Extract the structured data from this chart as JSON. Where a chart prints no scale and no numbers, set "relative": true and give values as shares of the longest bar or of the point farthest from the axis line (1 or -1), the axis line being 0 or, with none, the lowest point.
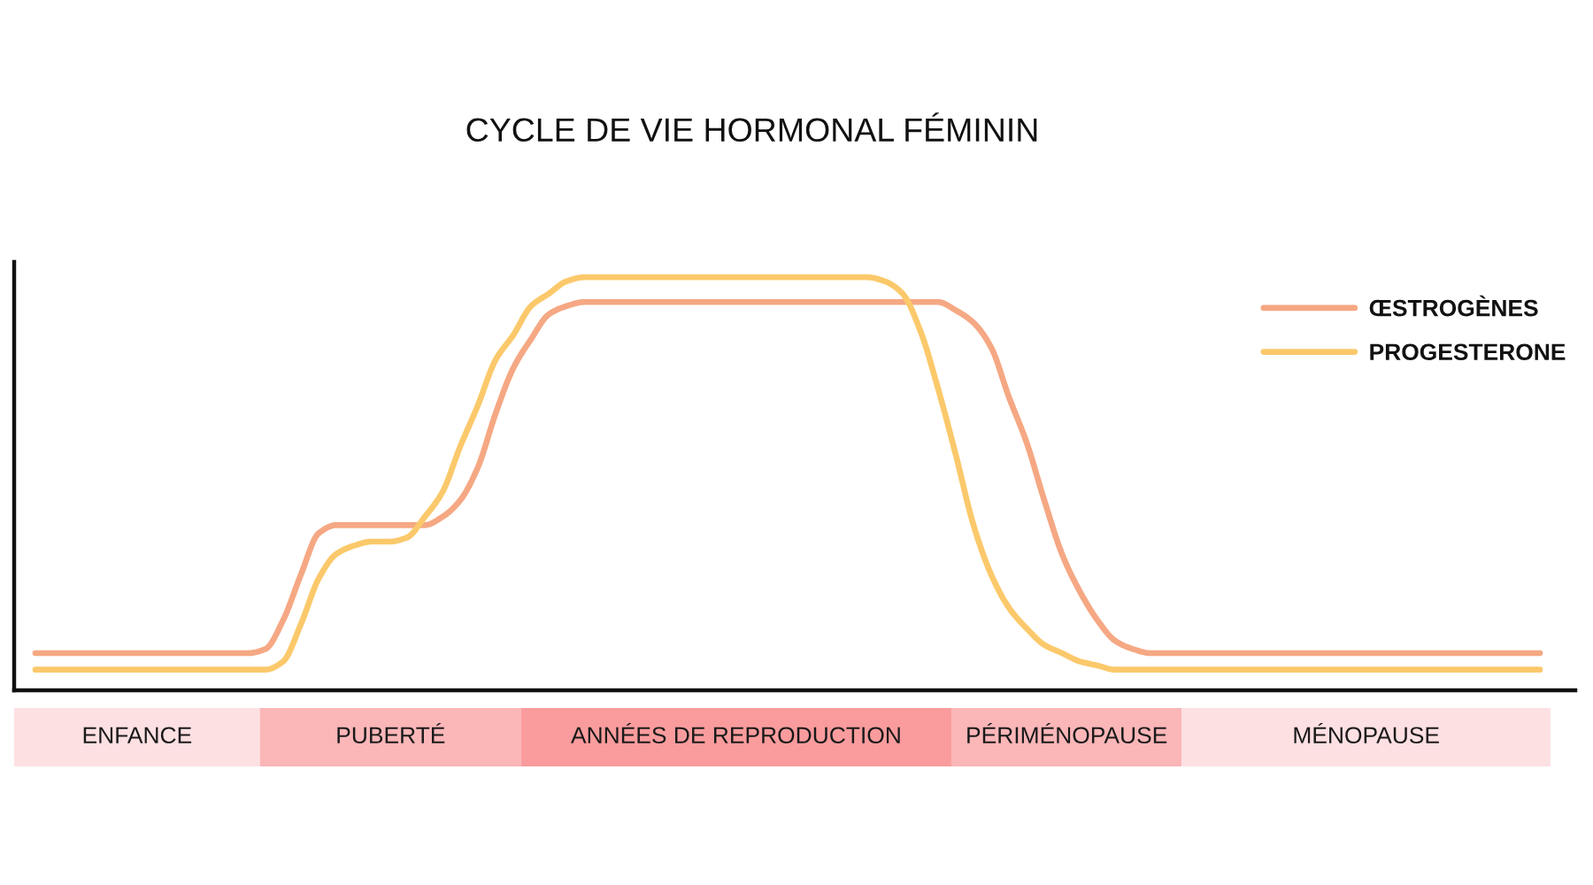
{
  "chart_data": [
    {
      "type": "line",
      "title": "CYCLE DE VIE HORMONAL FÉMININ",
      "relative": true,
      "legend": "top right",
      "categories": [
        null,
        null,
        null,
        null,
        null,
        null,
        null,
        null,
        null,
        null,
        null,
        null,
        null,
        null,
        null,
        null,
        null,
        null,
        null,
        null,
        null,
        null,
        null,
        null,
        null,
        null,
        null,
        null,
        null,
        null,
        null,
        null,
        null,
        null,
        null,
        null,
        null,
        null,
        null,
        null,
        null,
        null,
        null,
        null,
        null,
        null,
        null,
        null,
        null,
        null,
        null,
        null,
        null,
        null,
        null,
        null,
        null,
        null,
        null,
        null,
        null,
        null,
        null,
        null,
        null,
        null,
        null,
        null,
        null,
        null,
        null,
        null,
        null,
        null,
        null,
        null,
        null,
        null,
        null,
        null,
        null,
        null,
        null,
        null,
        null,
        null
      ],
      "series": [
        {
          "name": "ŒSTROGÈNES",
          "color": "#f5a883",
          "values": [
            0.09,
            0.09,
            0.09,
            0.09,
            0.09,
            0.09,
            0.09,
            0.09,
            0.09,
            0.09,
            0.09,
            0.09,
            0.09,
            0.1,
            0.17,
            0.28,
            0.38,
            0.4,
            0.4,
            0.4,
            0.4,
            0.4,
            0.4,
            0.42,
            0.46,
            0.54,
            0.67,
            0.78,
            0.85,
            0.91,
            0.93,
            0.94,
            0.94,
            0.94,
            0.94,
            0.94,
            0.94,
            0.94,
            0.94,
            0.94,
            0.94,
            0.94,
            0.94,
            0.94,
            0.94,
            0.94,
            0.94,
            0.94,
            0.94,
            0.94,
            0.94,
            0.94,
            0.92,
            0.89,
            0.83,
            0.71,
            0.6,
            0.46,
            0.33,
            0.24,
            0.17,
            0.12,
            0.1,
            0.09,
            0.09,
            0.09,
            0.09,
            0.09,
            0.09,
            0.09,
            0.09,
            0.09,
            0.09,
            0.09,
            0.09,
            0.09,
            0.09,
            0.09,
            0.09,
            0.09,
            0.09,
            0.09,
            0.09,
            0.09,
            0.09,
            0.09
          ]
        },
        {
          "name": "PROGESTERONE",
          "color": "#fbc96b",
          "values": [
            0.05,
            0.05,
            0.05,
            0.05,
            0.05,
            0.05,
            0.05,
            0.05,
            0.05,
            0.05,
            0.05,
            0.05,
            0.05,
            0.05,
            0.07,
            0.16,
            0.27,
            0.33,
            0.35,
            0.36,
            0.36,
            0.37,
            0.42,
            0.48,
            0.59,
            0.69,
            0.8,
            0.86,
            0.93,
            0.96,
            0.99,
            1,
            1,
            1,
            1,
            1,
            1,
            1,
            1,
            1,
            1,
            1,
            1,
            1,
            1,
            1,
            1,
            1,
            0.99,
            0.96,
            0.87,
            0.73,
            0.57,
            0.4,
            0.28,
            0.2,
            0.15,
            0.11,
            0.09,
            0.07,
            0.06,
            0.05,
            0.05,
            0.05,
            0.05,
            0.05,
            0.05,
            0.05,
            0.05,
            0.05,
            0.05,
            0.05,
            0.05,
            0.05,
            0.05,
            0.05,
            0.05,
            0.05,
            0.05,
            0.05,
            0.05,
            0.05,
            0.05,
            0.05,
            0.05,
            0.05
          ]
        }
      ]
    },
    {
      "type": "bar",
      "orientation": "horizontal",
      "stacked": true,
      "relative": true,
      "categories": [
        null
      ],
      "series": [
        {
          "name": "ENFANCE",
          "color": "#fde0e2",
          "values": [
            0.16
          ]
        },
        {
          "name": "PUBERTÉ",
          "color": "#fbb6b8",
          "values": [
            0.17
          ]
        },
        {
          "name": "ANNÉES DE REPRODUCTION",
          "color": "#fa9c9d",
          "values": [
            0.28
          ]
        },
        {
          "name": "PÉRIMÉNOPAUSE",
          "color": "#fbb6b8",
          "values": [
            0.15
          ]
        },
        {
          "name": "MÉNOPAUSE",
          "color": "#fde0e2",
          "values": [
            0.24
          ]
        }
      ]
    }
  ]
}
